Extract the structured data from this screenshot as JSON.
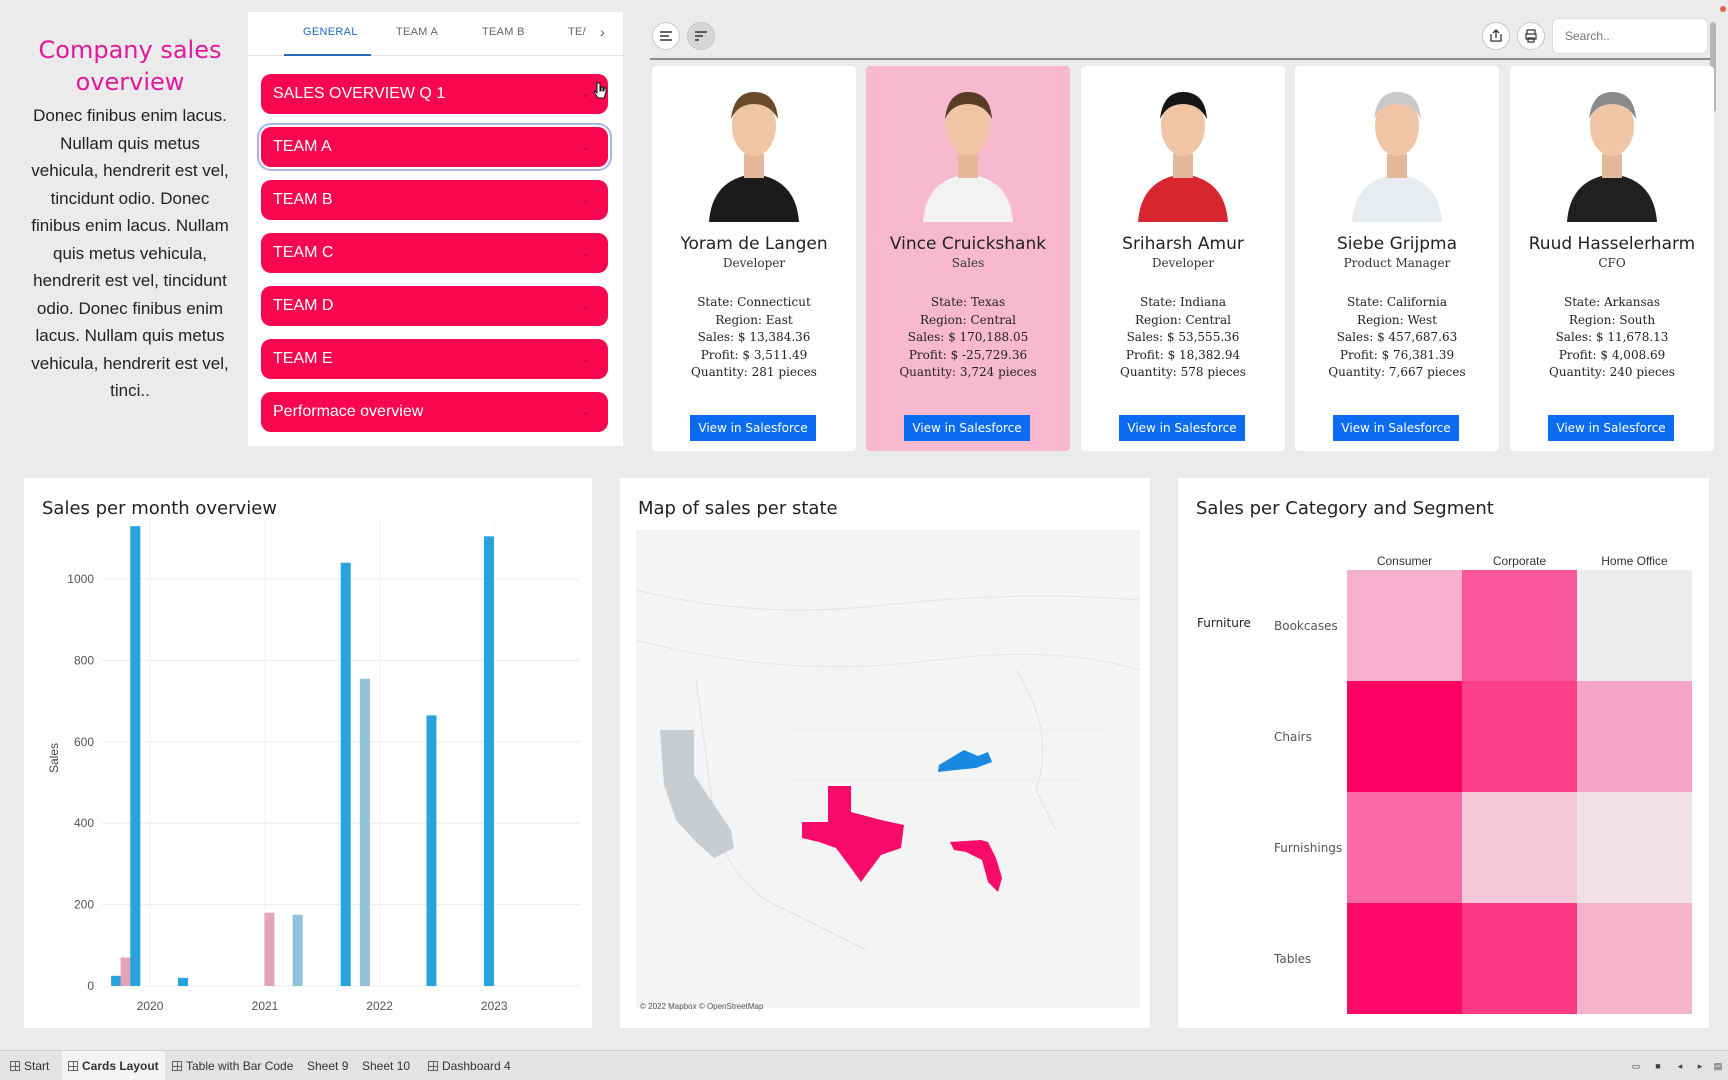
{
  "intro": {
    "title": "Company sales overview",
    "body": "Donec finibus enim lacus. Nullam quis metus vehicula, hendrerit est vel, tincidunt odio. Donec finibus enim lacus. Nullam quis metus vehicula, hendrerit est vel, tincidunt odio. Donec finibus enim lacus. Nullam quis metus vehicula, hendrerit est vel, tinci.."
  },
  "tabs": [
    "GENERAL",
    "TEAM A",
    "TEAM B",
    "TE/"
  ],
  "accordion": [
    "SALES OVERVIEW Q 1",
    "TEAM A",
    "TEAM B",
    "TEAM C",
    "TEAM D",
    "TEAM E",
    "Performace overview"
  ],
  "toolbar": {
    "search_placeholder": "Search..",
    "align_icon": "align-left-icon",
    "sort_icon": "sort-icon",
    "share_icon": "share-icon",
    "print_icon": "print-icon"
  },
  "people": [
    {
      "name": "Yoram de Langen",
      "role": "Developer",
      "state": "State: Connecticut",
      "region": "Region: East",
      "sales": "Sales: $ 13,384.36",
      "profit": "Profit: $ 3,511.49",
      "quantity": "Quantity: 281 pieces",
      "button": "View in Salesforce",
      "shirt": "#1b1b1b",
      "hair": "#6b4a2c",
      "highlighted": false
    },
    {
      "name": "Vince Cruickshank",
      "role": "Sales",
      "state": "State: Texas",
      "region": "Region: Central",
      "sales": "Sales: $ 170,188.05",
      "profit": "Profit: $ -25,729.36",
      "quantity": "Quantity: 3,724 pieces",
      "button": "View in Salesforce",
      "shirt": "#f2f2f2",
      "hair": "#5a3b25",
      "highlighted": true
    },
    {
      "name": "Sriharsh Amur",
      "role": "Developer",
      "state": "State: Indiana",
      "region": "Region: Central",
      "sales": "Sales: $ 53,555.36",
      "profit": "Profit: $ 18,382.94",
      "quantity": "Quantity: 578 pieces",
      "button": "View in Salesforce",
      "shirt": "#d7262e",
      "hair": "#151515",
      "highlighted": false
    },
    {
      "name": "Siebe Grijpma",
      "role": "Product Manager",
      "state": "State: California",
      "region": "Region: West",
      "sales": "Sales: $ 457,687.63",
      "profit": "Profit: $ 76,381.39",
      "quantity": "Quantity: 7,667 pieces",
      "button": "View in Salesforce",
      "shirt": "#e9ecef",
      "hair": "#c9c9c9",
      "highlighted": false
    },
    {
      "name": "Ruud Hasselerharm",
      "role": "CFO",
      "state": "State: Arkansas",
      "region": "Region: South",
      "sales": "Sales: $ 11,678.13",
      "profit": "Profit: $ 4,008.69",
      "quantity": "Quantity: 240 pieces",
      "button": "View in Salesforce",
      "shirt": "#202020",
      "hair": "#8a8a8a",
      "highlighted": false
    }
  ],
  "panels": {
    "bar_title": "Sales per month overview",
    "map_title": "Map of sales per state",
    "map_credit": "© 2022 Mapbox © OpenStreetMap",
    "heatmap_title": "Sales per Category and Segment"
  },
  "chart_data": [
    {
      "type": "bar",
      "title": "Sales per month overview",
      "xlabel": "",
      "ylabel": "Sales",
      "ylim": [
        0,
        1150
      ],
      "yticks": [
        0,
        200,
        400,
        600,
        800,
        1000
      ],
      "xticks": [
        "2020",
        "2021",
        "2022",
        "2023"
      ],
      "xlim": [
        "2019-08-01",
        "2023-10-01"
      ],
      "grid": true,
      "bars": [
        {
          "x": "2019-09-15",
          "value": 25,
          "color": "#2aa3dc"
        },
        {
          "x": "2019-10-15",
          "value": 70,
          "color": "#e3a4b8"
        },
        {
          "x": "2019-11-15",
          "value": 1130,
          "color": "#2aa3dc"
        },
        {
          "x": "2020-04-15",
          "value": 20,
          "color": "#2aa3dc"
        },
        {
          "x": "2021-01-15",
          "value": 180,
          "color": "#e3a4b8"
        },
        {
          "x": "2021-04-15",
          "value": 175,
          "color": "#8fc3da"
        },
        {
          "x": "2021-09-15",
          "value": 1040,
          "color": "#2aa3dc"
        },
        {
          "x": "2021-11-15",
          "value": 755,
          "color": "#8fc3da"
        },
        {
          "x": "2022-06-15",
          "value": 665,
          "color": "#2aa3dc"
        },
        {
          "x": "2022-12-15",
          "value": 1105,
          "color": "#2aa3dc"
        }
      ]
    },
    {
      "type": "heatmap",
      "title": "Sales per Category and Segment",
      "columns": [
        "Consumer",
        "Corporate",
        "Home Office"
      ],
      "category": "Furniture",
      "rows": [
        "Bookcases",
        "Chairs",
        "Furnishings",
        "Tables"
      ],
      "colors": [
        [
          "#f6b0cb",
          "#f8569a",
          "#ececec"
        ],
        [
          "#ff0065",
          "#fc3f87",
          "#f6a7c5"
        ],
        [
          "#f96aa4",
          "#f4c8d9",
          "#efe1e6"
        ],
        [
          "#ff0a6b",
          "#fc3a84",
          "#f6b3cc"
        ]
      ]
    }
  ],
  "map_states": [
    {
      "name": "California",
      "color": "#c8cdd2"
    },
    {
      "name": "Texas",
      "color": "#f80a6a"
    },
    {
      "name": "Kentucky",
      "color": "#1a8ae0"
    },
    {
      "name": "Florida",
      "color": "#f80a6a"
    }
  ],
  "sheets": [
    "Start",
    "Cards Layout",
    "Table with Bar Code",
    "Sheet 9",
    "Sheet 10",
    "Dashboard 4"
  ]
}
